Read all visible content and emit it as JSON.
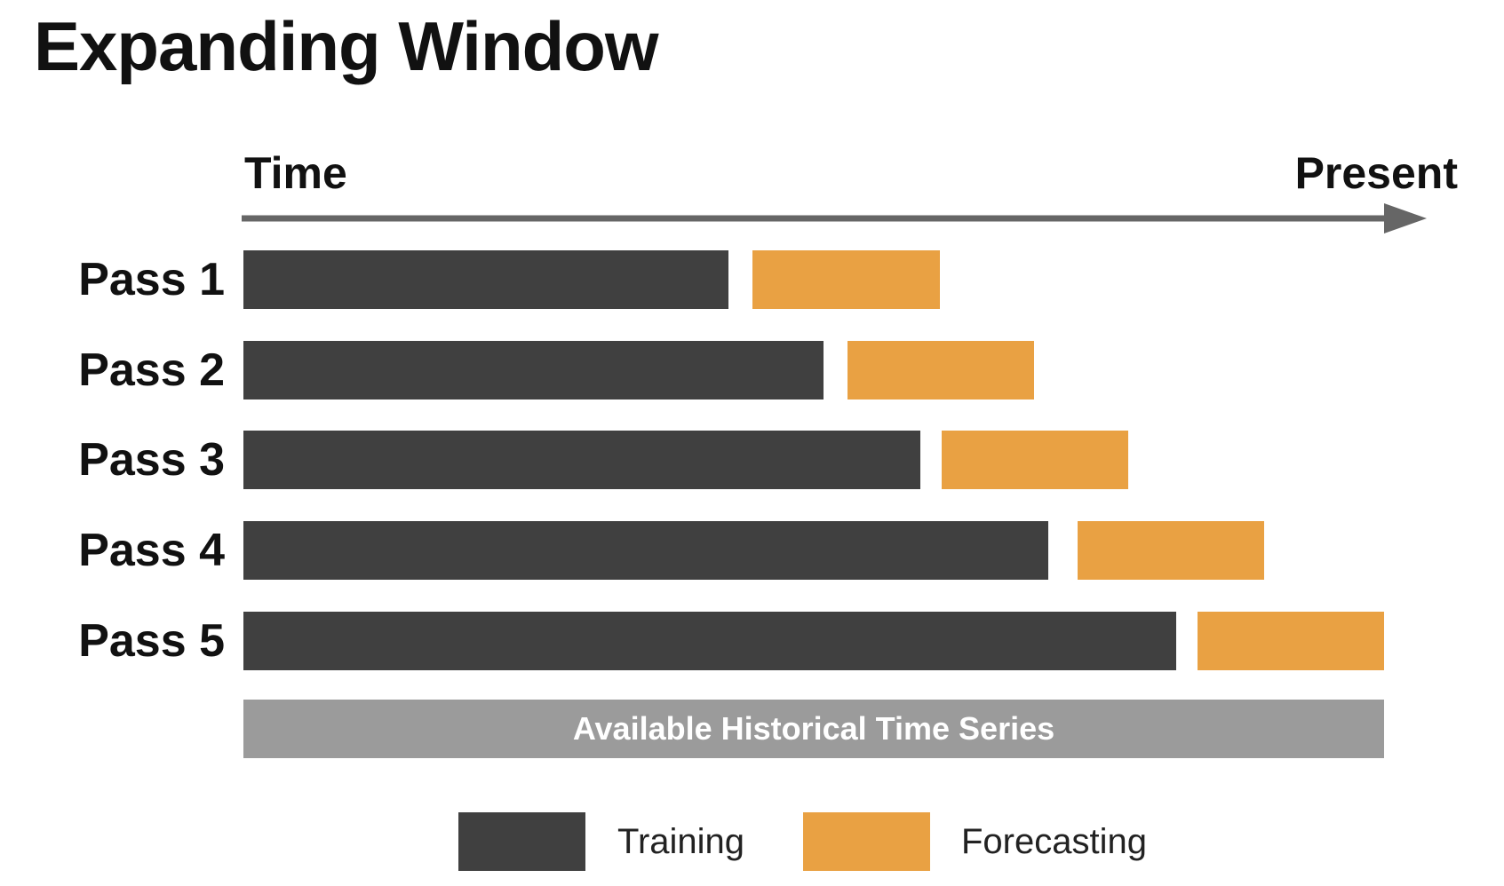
{
  "title": "Expanding Window",
  "axis": {
    "start_label": "Time",
    "end_label": "Present"
  },
  "passes": [
    {
      "label": "Pass 1",
      "training": [
        0,
        0.4254
      ],
      "forecasting": [
        0.4466,
        0.6103
      ]
    },
    {
      "label": "Pass 2",
      "training": [
        0,
        0.5085
      ],
      "forecasting": [
        0.5297,
        0.6932
      ]
    },
    {
      "label": "Pass 3",
      "training": [
        0,
        0.5932
      ],
      "forecasting": [
        0.6119,
        0.7754
      ]
    },
    {
      "label": "Pass 4",
      "training": [
        0,
        0.7059
      ],
      "forecasting": [
        0.7314,
        0.8949
      ]
    },
    {
      "label": "Pass 5",
      "training": [
        0,
        0.8178
      ],
      "forecasting": [
        0.8364,
        1.0
      ]
    }
  ],
  "history_bar": {
    "label": "Available Historical Time Series"
  },
  "legend": [
    {
      "label": "Training",
      "color": "#404040"
    },
    {
      "label": "Forecasting",
      "color": "#e9a143"
    }
  ],
  "colors": {
    "training": "#404040",
    "forecasting": "#e9a143",
    "history": "#9b9b9b",
    "axis": "#666666"
  }
}
